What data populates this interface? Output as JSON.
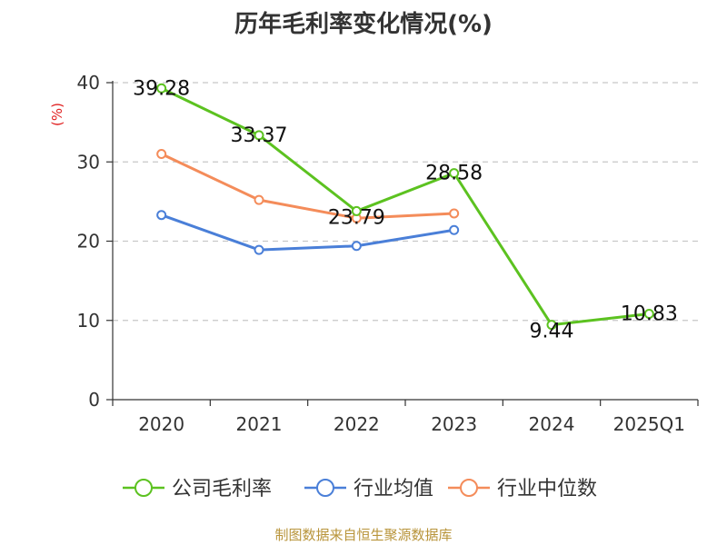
{
  "chart_data": {
    "type": "line",
    "title": "历年毛利率变化情况(%)",
    "ylabel": "(%)",
    "xlabel": "",
    "categories": [
      "2020",
      "2021",
      "2022",
      "2023",
      "2024",
      "2025Q1"
    ],
    "ylim": [
      0,
      40
    ],
    "yticks": [
      0,
      10,
      20,
      30,
      40
    ],
    "grid": true,
    "legend_position": "bottom",
    "series": [
      {
        "name": "公司毛利率",
        "color": "#5cc220",
        "values": [
          39.28,
          33.37,
          23.79,
          28.58,
          9.44,
          10.83
        ],
        "labels": [
          "39.28",
          "33.37",
          "23.79",
          "28.58",
          "9.44",
          "10.83"
        ]
      },
      {
        "name": "行业均值",
        "color": "#4a7fd8",
        "values": [
          23.3,
          18.9,
          19.4,
          21.4,
          null,
          null
        ]
      },
      {
        "name": "行业中位数",
        "color": "#f48c5a",
        "values": [
          31.0,
          25.2,
          22.9,
          23.5,
          null,
          null
        ]
      }
    ]
  },
  "source": "制图数据来自恒生聚源数据库"
}
